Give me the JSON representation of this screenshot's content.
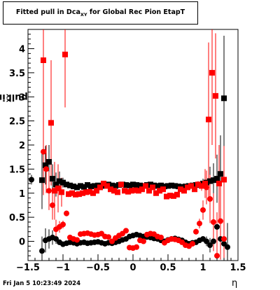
{
  "title": {
    "prefix": "Fitted pull in Dca",
    "subscript": "XY",
    "suffix": " for Global Rec Pion EtapT"
  },
  "ylabel": {
    "prefix": "pull in Dca",
    "subscript": "XY"
  },
  "xlabel": "η",
  "timestamp": "Fri Jan  5 10:23:49 2024",
  "colors": {
    "black_series": "#000000",
    "red_series": "#ff0000",
    "frame": "#000000"
  },
  "chart_data": {
    "type": "scatter",
    "xlim": [
      -1.5,
      1.5
    ],
    "ylim": [
      -0.4,
      4.4
    ],
    "xticks": [
      -1.5,
      -1,
      -0.5,
      0,
      0.5,
      1,
      1.5
    ],
    "xtick_labels": [
      "−1.5",
      "−1",
      "−0.5",
      "0",
      "0.5",
      "1",
      "1.5"
    ],
    "yticks": [
      0,
      0.5,
      1,
      1.5,
      2,
      2.5,
      3,
      3.5,
      4
    ],
    "ytick_labels": [
      "0",
      "0.5",
      "1",
      "1.5",
      "2",
      "2.5",
      "3",
      "3.5",
      "4"
    ],
    "series": [
      {
        "marker": "square",
        "color": "#000000",
        "x": [
          -1.3,
          -1.25,
          -1.2,
          -1.15,
          -1.1,
          -1.05,
          -1.0,
          -0.95,
          -0.9,
          -0.85,
          -0.8,
          -0.75,
          -0.7,
          -0.65,
          -0.6,
          -0.55,
          -0.5,
          -0.45,
          -0.4,
          -0.35,
          -0.3,
          -0.25,
          -0.2,
          -0.15,
          -0.1,
          -0.05,
          0.0,
          0.05,
          0.1,
          0.15,
          0.2,
          0.25,
          0.3,
          0.35,
          0.4,
          0.45,
          0.5,
          0.55,
          0.6,
          0.65,
          0.7,
          0.75,
          0.8,
          0.85,
          0.9,
          0.95,
          1.0,
          1.05,
          1.1,
          1.15,
          1.2,
          1.25,
          1.3
        ],
        "y": [
          1.27,
          1.58,
          1.65,
          1.3,
          1.18,
          1.25,
          1.22,
          1.18,
          1.16,
          1.14,
          1.12,
          1.15,
          1.13,
          1.17,
          1.14,
          1.15,
          1.16,
          1.15,
          1.17,
          1.18,
          1.16,
          1.15,
          1.17,
          1.18,
          1.17,
          1.16,
          1.18,
          1.17,
          1.16,
          1.15,
          1.17,
          1.18,
          1.16,
          1.15,
          1.16,
          1.14,
          1.15,
          1.16,
          1.15,
          1.14,
          1.13,
          1.14,
          1.15,
          1.16,
          1.17,
          1.18,
          1.2,
          1.22,
          1.25,
          1.27,
          1.3,
          1.4,
          2.97
        ],
        "err": [
          0.6,
          0.4,
          0.35,
          0.3,
          0.25,
          0.2,
          0.1,
          0.04,
          0.03,
          0.03,
          0.03,
          0.03,
          0.03,
          0.03,
          0.03,
          0.03,
          0.03,
          0.03,
          0.03,
          0.03,
          0.03,
          0.03,
          0.03,
          0.03,
          0.03,
          0.03,
          0.03,
          0.03,
          0.03,
          0.03,
          0.03,
          0.03,
          0.03,
          0.03,
          0.03,
          0.03,
          0.03,
          0.03,
          0.03,
          0.03,
          0.03,
          0.03,
          0.03,
          0.03,
          0.03,
          0.04,
          0.1,
          0.2,
          0.3,
          0.35,
          0.5,
          0.8,
          1.3
        ]
      },
      {
        "marker": "circle",
        "color": "#000000",
        "x": [
          -1.45,
          -1.3,
          -1.25,
          -1.2,
          -1.15,
          -1.1,
          -1.05,
          -1.0,
          -0.95,
          -0.9,
          -0.85,
          -0.8,
          -0.75,
          -0.7,
          -0.65,
          -0.6,
          -0.55,
          -0.5,
          -0.45,
          -0.4,
          -0.35,
          -0.3,
          -0.25,
          -0.2,
          -0.15,
          -0.1,
          -0.05,
          0.0,
          0.05,
          0.1,
          0.15,
          0.2,
          0.25,
          0.3,
          0.35,
          0.4,
          0.45,
          0.5,
          0.55,
          0.6,
          0.65,
          0.7,
          0.75,
          0.8,
          0.85,
          0.9,
          0.95,
          1.0,
          1.05,
          1.1,
          1.15,
          1.2,
          1.25,
          1.3,
          1.35
        ],
        "y": [
          1.28,
          -0.2,
          0.02,
          0.05,
          0.08,
          0.05,
          -0.02,
          -0.06,
          -0.04,
          -0.02,
          -0.03,
          -0.05,
          -0.03,
          -0.02,
          -0.04,
          -0.03,
          -0.02,
          -0.01,
          -0.03,
          -0.05,
          -0.03,
          -0.04,
          -0.02,
          0.0,
          0.03,
          0.05,
          0.1,
          0.12,
          0.14,
          0.12,
          0.1,
          0.09,
          0.08,
          0.06,
          0.05,
          0.02,
          0.0,
          0.03,
          0.05,
          0.06,
          0.04,
          0.02,
          -0.02,
          -0.05,
          -0.03,
          -0.02,
          0.02,
          0.05,
          0.0,
          -0.08,
          0.0,
          0.3,
          0.05,
          -0.05,
          -0.12
        ],
        "err": [
          0.1,
          0.3,
          0.25,
          0.2,
          0.15,
          0.1,
          0.06,
          0.03,
          0.02,
          0.02,
          0.02,
          0.02,
          0.02,
          0.02,
          0.02,
          0.02,
          0.02,
          0.02,
          0.02,
          0.02,
          0.02,
          0.02,
          0.02,
          0.02,
          0.02,
          0.02,
          0.02,
          0.02,
          0.02,
          0.02,
          0.02,
          0.02,
          0.02,
          0.02,
          0.02,
          0.02,
          0.02,
          0.02,
          0.02,
          0.02,
          0.02,
          0.02,
          0.02,
          0.02,
          0.02,
          0.02,
          0.03,
          0.06,
          0.1,
          0.15,
          0.2,
          0.3,
          0.35,
          0.4,
          0.5
        ]
      },
      {
        "marker": "square",
        "color": "#ff0000",
        "x": [
          -1.28,
          -1.17,
          -1.12,
          -1.07,
          -1.02,
          -0.97,
          -0.92,
          -0.87,
          -0.82,
          -0.77,
          -0.72,
          -0.67,
          -0.62,
          -0.57,
          -0.52,
          -0.47,
          -0.42,
          -0.37,
          -0.32,
          -0.27,
          -0.22,
          -0.17,
          -0.12,
          -0.07,
          -0.02,
          0.03,
          0.08,
          0.13,
          0.18,
          0.23,
          0.28,
          0.33,
          0.38,
          0.43,
          0.48,
          0.53,
          0.58,
          0.63,
          0.68,
          0.73,
          0.78,
          0.83,
          0.88,
          0.93,
          0.98,
          1.03,
          1.08,
          1.13,
          1.18,
          1.23,
          1.3
        ],
        "y": [
          3.76,
          2.46,
          1.05,
          1.1,
          1.02,
          3.88,
          0.98,
          1.0,
          0.97,
          0.98,
          1.0,
          1.02,
          1.03,
          1.0,
          1.05,
          1.12,
          1.2,
          1.15,
          1.08,
          1.05,
          1.02,
          1.18,
          1.05,
          1.03,
          1.05,
          1.06,
          1.05,
          1.08,
          1.15,
          1.05,
          1.12,
          1.0,
          1.05,
          1.08,
          0.93,
          0.95,
          0.94,
          0.97,
          1.08,
          1.05,
          1.12,
          1.15,
          1.08,
          1.18,
          1.15,
          1.2,
          2.53,
          3.5,
          3.02,
          1.2,
          1.28
        ],
        "err": [
          1.4,
          1.3,
          0.6,
          0.5,
          0.3,
          1.1,
          0.06,
          0.04,
          0.04,
          0.04,
          0.04,
          0.04,
          0.04,
          0.04,
          0.04,
          0.04,
          0.04,
          0.04,
          0.04,
          0.04,
          0.04,
          0.04,
          0.04,
          0.04,
          0.04,
          0.04,
          0.04,
          0.04,
          0.04,
          0.04,
          0.04,
          0.04,
          0.04,
          0.04,
          0.04,
          0.04,
          0.04,
          0.04,
          0.04,
          0.04,
          0.04,
          0.04,
          0.05,
          0.07,
          0.1,
          0.3,
          1.6,
          1.5,
          1.3,
          0.8,
          0.7
        ]
      },
      {
        "marker": "circle",
        "color": "#ff0000",
        "x": [
          -1.28,
          -1.24,
          -1.2,
          -1.15,
          -1.1,
          -1.05,
          -1.0,
          -0.95,
          -0.9,
          -0.85,
          -0.8,
          -0.75,
          -0.7,
          -0.65,
          -0.6,
          -0.55,
          -0.5,
          -0.45,
          -0.4,
          -0.35,
          -0.3,
          -0.25,
          -0.2,
          -0.15,
          -0.1,
          -0.05,
          0.0,
          0.05,
          0.1,
          0.15,
          0.2,
          0.25,
          0.3,
          0.35,
          0.4,
          0.45,
          0.5,
          0.55,
          0.6,
          0.65,
          0.7,
          0.75,
          0.8,
          0.85,
          0.9,
          0.95,
          1.0,
          1.05,
          1.1,
          1.15,
          1.2,
          1.25,
          1.3
        ],
        "y": [
          1.86,
          1.5,
          1.05,
          0.75,
          0.25,
          0.3,
          0.35,
          0.58,
          0.08,
          0.05,
          0.03,
          0.15,
          0.16,
          0.17,
          0.15,
          0.13,
          0.14,
          0.16,
          0.1,
          0.09,
          0.0,
          0.07,
          0.12,
          0.16,
          0.22,
          -0.13,
          -0.14,
          -0.12,
          0.02,
          0.0,
          0.14,
          0.16,
          0.15,
          0.1,
          0.08,
          -0.03,
          0.02,
          0.05,
          0.04,
          0.02,
          -0.02,
          -0.08,
          -0.1,
          -0.05,
          0.2,
          0.37,
          0.65,
          1.12,
          0.88,
          0.4,
          -0.3,
          0.42,
          0.05
        ],
        "err": [
          0.9,
          0.5,
          0.4,
          0.3,
          0.2,
          0.12,
          0.08,
          0.06,
          0.04,
          0.03,
          0.03,
          0.03,
          0.03,
          0.03,
          0.03,
          0.03,
          0.03,
          0.03,
          0.03,
          0.03,
          0.03,
          0.03,
          0.03,
          0.03,
          0.03,
          0.03,
          0.03,
          0.03,
          0.03,
          0.03,
          0.03,
          0.03,
          0.03,
          0.03,
          0.03,
          0.03,
          0.03,
          0.03,
          0.03,
          0.03,
          0.03,
          0.03,
          0.03,
          0.04,
          0.06,
          0.1,
          0.2,
          0.35,
          0.5,
          0.6,
          0.9,
          0.8,
          0.7
        ]
      }
    ]
  }
}
